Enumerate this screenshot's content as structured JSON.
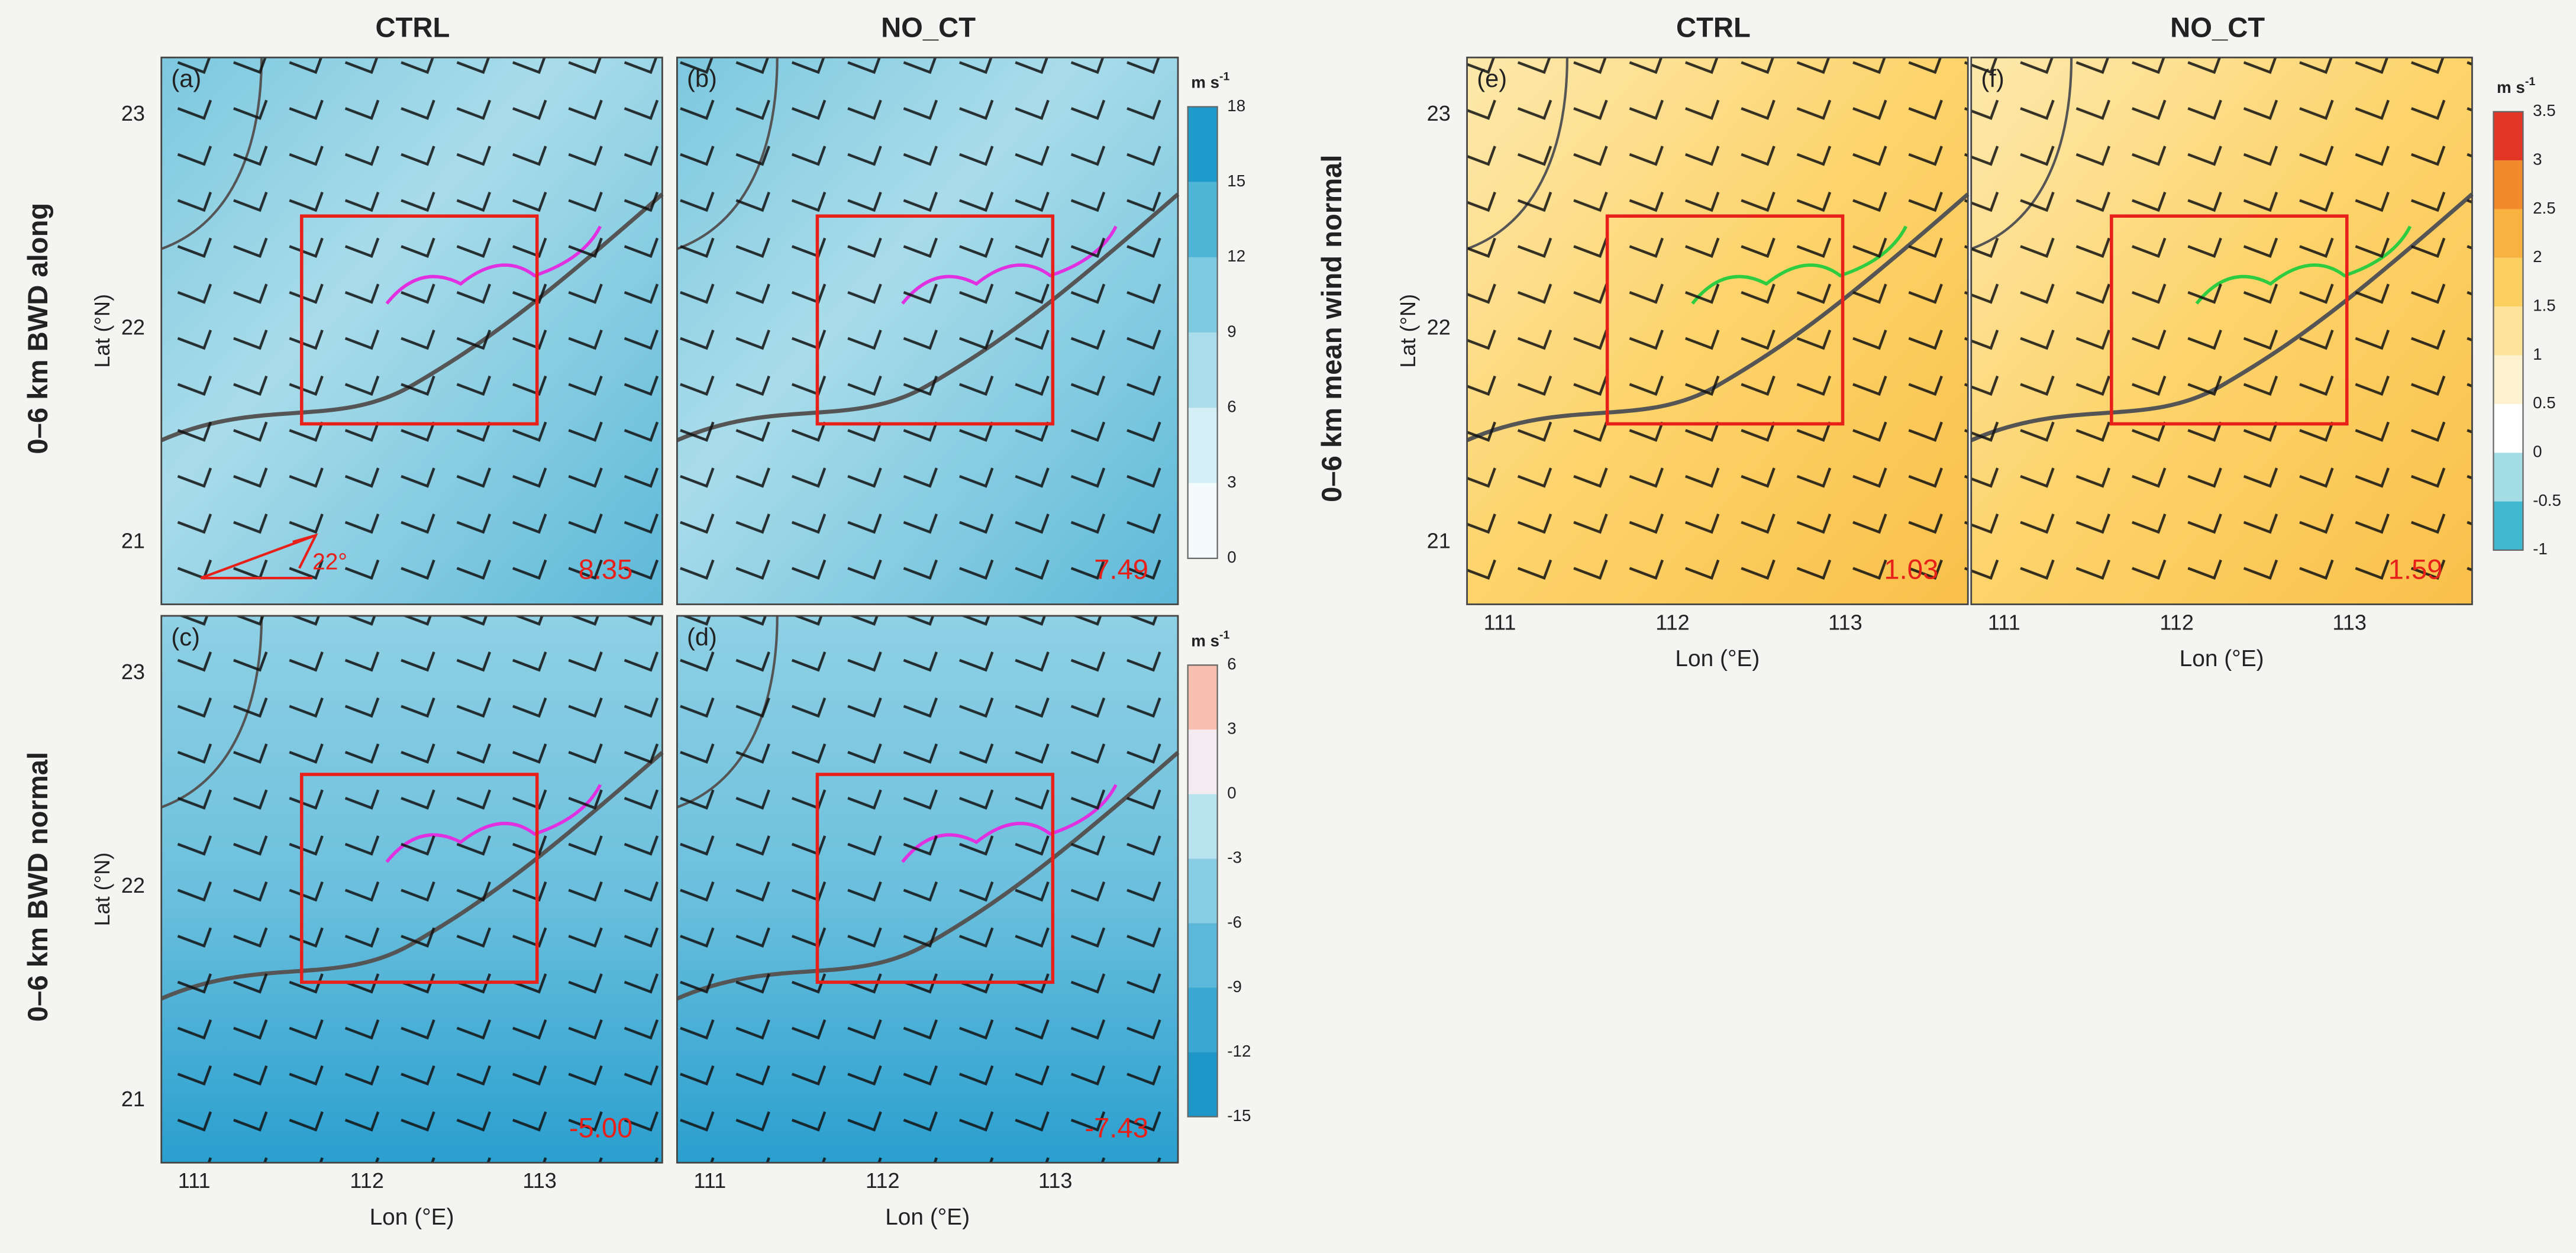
{
  "columns": [
    {
      "title": "CTRL"
    },
    {
      "title": "NO_CT"
    },
    {
      "title": "CTRL"
    },
    {
      "title": "NO_CT"
    }
  ],
  "rows": [
    "0–6 km BWD along",
    "0–6 km BWD normal",
    "0–6 km mean wind normal"
  ],
  "axes": {
    "x_label": "Lon (°E)",
    "y_label": "Lat (°N)",
    "xlim": [
      110.81,
      113.71
    ],
    "ylim": [
      20.71,
      23.27
    ],
    "xticks": [
      111,
      112,
      113
    ],
    "yticks": [
      21,
      22,
      23
    ]
  },
  "panels": [
    {
      "label": "(a)",
      "value": "8.35"
    },
    {
      "label": "(b)",
      "value": "7.49"
    },
    {
      "label": "(c)",
      "value": "-5.00"
    },
    {
      "label": "(d)",
      "value": "-7.43"
    },
    {
      "label": "(e)",
      "value": "1.03"
    },
    {
      "label": "(f)",
      "value": "1.59"
    }
  ],
  "annotation": "22°",
  "colorbars": [
    {
      "unit": {
        "base": "m s",
        "sup": "-1"
      },
      "lim": [
        0,
        18
      ],
      "ticks": [
        0,
        3,
        6,
        9,
        12,
        15,
        18
      ],
      "colors": [
        "#f3fbfd",
        "#d4eff5",
        "#a8dde9",
        "#7ccbe0",
        "#4fb5d6",
        "#1e9acb"
      ]
    },
    {
      "unit": {
        "base": "m s",
        "sup": "-1"
      },
      "lim": [
        -15,
        6
      ],
      "ticks": [
        -15,
        -12,
        -9,
        -6,
        -3,
        0,
        3,
        6
      ],
      "colors": [
        "#1e96c8",
        "#3aa8d3",
        "#5bb8da",
        "#88cde3",
        "#b8e2ee",
        "#f3ebef",
        "#f6bfae"
      ]
    },
    {
      "unit": {
        "base": "m s",
        "sup": "-1"
      },
      "lim": [
        -1,
        3.5
      ],
      "ticks": [
        -1,
        -0.5,
        0,
        0.5,
        1,
        1.5,
        2,
        2.5,
        3,
        3.5
      ],
      "colors": [
        "#40b8cf",
        "#a5dde6",
        "#ffffff",
        "#fdf2cf",
        "#fde49a",
        "#fbd060",
        "#f8b23f",
        "#f18a2b",
        "#e43626"
      ]
    }
  ]
}
